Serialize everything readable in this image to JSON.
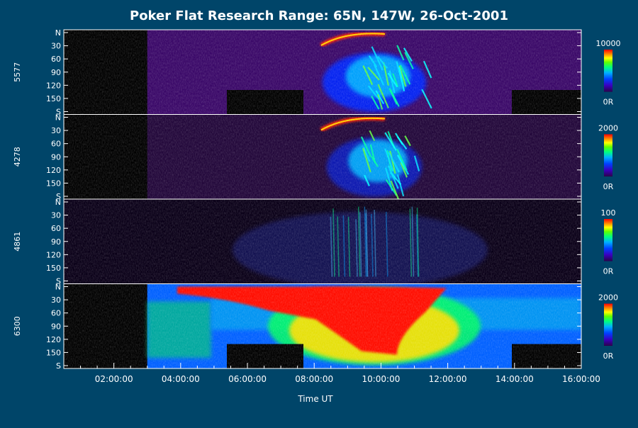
{
  "chart_data": {
    "type": "heatmap",
    "title": "Poker Flat Research Range: 65N, 147W, 26-Oct-2001",
    "xlabel": "Time UT",
    "x_ticks": [
      "02:00:00",
      "04:00:00",
      "06:00:00",
      "08:00:00",
      "10:00:00",
      "12:00:00",
      "14:00:00",
      "16:00:00"
    ],
    "xlim_hours": [
      0.5,
      16.0
    ],
    "y_ticks": [
      "N",
      "30",
      "60",
      "90",
      "120",
      "150",
      "S"
    ],
    "panels": [
      {
        "channel": "5577",
        "colorbar_max": "10000",
        "colorbar_min": "0R",
        "aurora_onset_hour": 8.1,
        "aurora_peak_hour": 9.8,
        "aurora_end_hour": 11.8
      },
      {
        "channel": "4278",
        "colorbar_max": "2000",
        "colorbar_min": "0R",
        "aurora_onset_hour": 8.1,
        "aurora_peak_hour": 9.8,
        "aurora_end_hour": 11.5
      },
      {
        "channel": "4861",
        "colorbar_max": "100",
        "colorbar_min": "0R",
        "aurora_onset_hour": 8.2,
        "aurora_peak_hour": 9.8,
        "aurora_end_hour": 11.5
      },
      {
        "channel": "6300",
        "colorbar_max": "2000",
        "colorbar_min": "0R",
        "aurora_onset_hour": 3.0,
        "aurora_peak_hour": 9.8,
        "aurora_end_hour": 15.8
      }
    ]
  },
  "colors": {
    "background": "#004569",
    "plot_bg": "#000000",
    "colormap": [
      "#2b004a",
      "#3a00a0",
      "#0030ff",
      "#00a8ff",
      "#00e8d0",
      "#00ff40",
      "#c8ff00",
      "#ffd000",
      "#ff7000",
      "#ff1000"
    ]
  }
}
